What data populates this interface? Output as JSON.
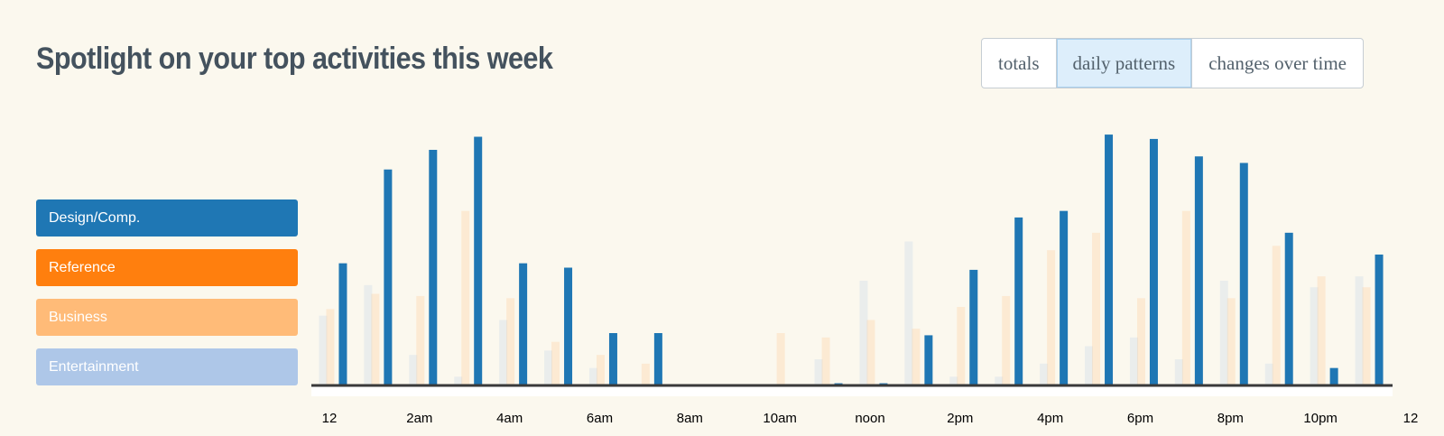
{
  "header": {
    "title": "Spotlight on your top activities this week",
    "tabs": [
      {
        "label": "totals",
        "active": false
      },
      {
        "label": "daily patterns",
        "active": true
      },
      {
        "label": "changes over time",
        "active": false
      }
    ]
  },
  "legend": [
    {
      "label": "Design/Comp.",
      "color": "#1f77b4"
    },
    {
      "label": "Reference",
      "color": "#ff7f0e"
    },
    {
      "label": "Business",
      "color": "#ffbb78"
    },
    {
      "label": "Entertainment",
      "color": "#aec7e8"
    }
  ],
  "chart_data": {
    "type": "bar",
    "x_tick_labels": [
      "12",
      "2am",
      "4am",
      "6am",
      "8am",
      "10am",
      "noon",
      "2pm",
      "4pm",
      "6pm",
      "8pm",
      "10pm",
      "12"
    ],
    "highlighted_series": "Design/Comp.",
    "series": [
      {
        "name": "Design/Comp.",
        "color": "#1f77b4",
        "values": [
          56,
          99,
          108,
          114,
          56,
          54,
          24,
          24,
          0,
          0,
          0,
          1,
          1,
          23,
          53,
          77,
          80,
          115,
          113,
          105,
          102,
          70,
          8,
          60
        ]
      },
      {
        "name": "Reference",
        "color": "#ff7f0e",
        "values": [
          0,
          0,
          0,
          0,
          0,
          0,
          0,
          0,
          0,
          0,
          0,
          0,
          0,
          0,
          0,
          0,
          0,
          0,
          0,
          0,
          0,
          0,
          0,
          0
        ]
      },
      {
        "name": "Business",
        "color": "#ffbb78",
        "values": [
          35,
          42,
          41,
          80,
          40,
          20,
          14,
          10,
          0,
          0,
          24,
          22,
          30,
          26,
          36,
          41,
          62,
          70,
          40,
          80,
          40,
          64,
          50,
          45
        ]
      },
      {
        "name": "Entertainment",
        "color": "#aec7e8",
        "values": [
          32,
          46,
          14,
          4,
          30,
          16,
          8,
          0,
          0,
          0,
          0,
          12,
          48,
          66,
          4,
          4,
          10,
          18,
          22,
          12,
          48,
          10,
          45,
          50
        ]
      }
    ],
    "ylim": [
      0,
      120
    ]
  }
}
